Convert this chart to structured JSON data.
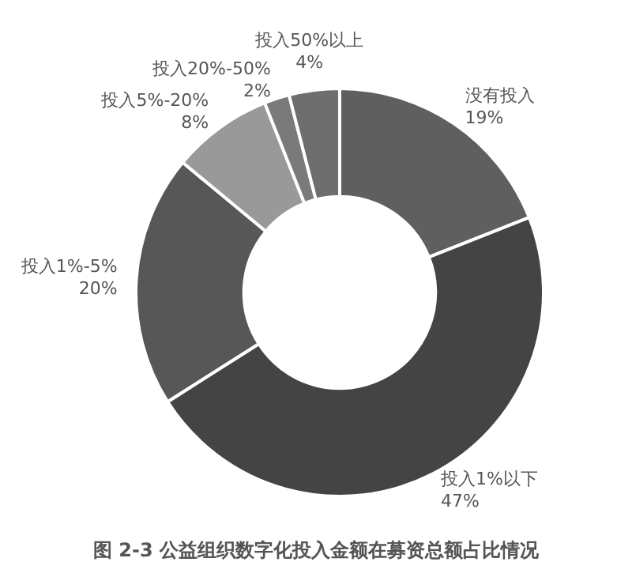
{
  "chart_data": {
    "type": "donut",
    "title": "图 2-3 公益组织数字化投入金额在募资总额占比情况",
    "categories": [
      "没有投入",
      "投入1%以下",
      "投入1%-5%",
      "投入5%-20%",
      "投入20%-50%",
      "投入50%以上"
    ],
    "values": [
      19,
      47,
      20,
      8,
      2,
      4
    ],
    "colors": [
      "#5f5f5f",
      "#444444",
      "#575757",
      "#999999",
      "#7a7a7a",
      "#6e6e6e"
    ],
    "value_labels": [
      "19%",
      "47%",
      "20%",
      "8%",
      "2%",
      "4%"
    ],
    "legend": false
  }
}
